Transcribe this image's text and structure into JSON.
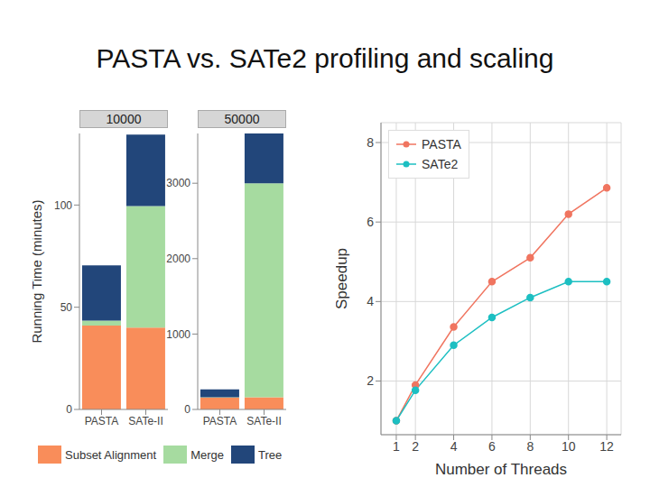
{
  "title": "PASTA vs. SATe2 profiling and scaling",
  "chart_data": [
    {
      "type": "bar",
      "stacked": true,
      "title": "10000",
      "ylabel": "Running Time (minutes)",
      "categories": [
        "PASTA",
        "SATe-II"
      ],
      "series": [
        {
          "name": "Subset Alignment",
          "color": "#f98d5a",
          "values": [
            41,
            40
          ]
        },
        {
          "name": "Merge",
          "color": "#a6dba0",
          "values": [
            2.5,
            59.5
          ]
        },
        {
          "name": "Tree",
          "color": "#22467a",
          "values": [
            27,
            35
          ]
        }
      ],
      "ylim": [
        0,
        135
      ],
      "yticks": [
        0,
        50,
        100
      ]
    },
    {
      "type": "bar",
      "stacked": true,
      "title": "50000",
      "categories": [
        "PASTA",
        "SATe-II"
      ],
      "series": [
        {
          "name": "Subset Alignment",
          "color": "#f98d5a",
          "values": [
            155,
            160
          ]
        },
        {
          "name": "Merge",
          "color": "#a6dba0",
          "values": [
            5,
            2840
          ]
        },
        {
          "name": "Tree",
          "color": "#22467a",
          "values": [
            105,
            660
          ]
        }
      ],
      "ylim": [
        0,
        3660
      ],
      "yticks": [
        0,
        1000,
        2000,
        3000
      ]
    },
    {
      "type": "line",
      "xlabel": "Number of Threads",
      "ylabel": "Speedup",
      "x": [
        1,
        2,
        4,
        6,
        8,
        10,
        12
      ],
      "series": [
        {
          "name": "PASTA",
          "color": "#f07560",
          "values": [
            1,
            1.9,
            3.36,
            4.5,
            5.1,
            6.2,
            6.86
          ]
        },
        {
          "name": "SATe2",
          "color": "#1dbfc2",
          "values": [
            1,
            1.77,
            2.9,
            3.6,
            4.1,
            4.5,
            4.5
          ]
        }
      ],
      "xlim": [
        0.2,
        12.75
      ],
      "xticks": [
        1,
        2,
        4,
        6,
        8,
        10,
        12
      ],
      "ylim": [
        0.65,
        8.5
      ],
      "yticks": [
        2,
        4,
        6,
        8
      ],
      "grid": true,
      "legend": "top-left",
      "marker": "circle"
    }
  ]
}
